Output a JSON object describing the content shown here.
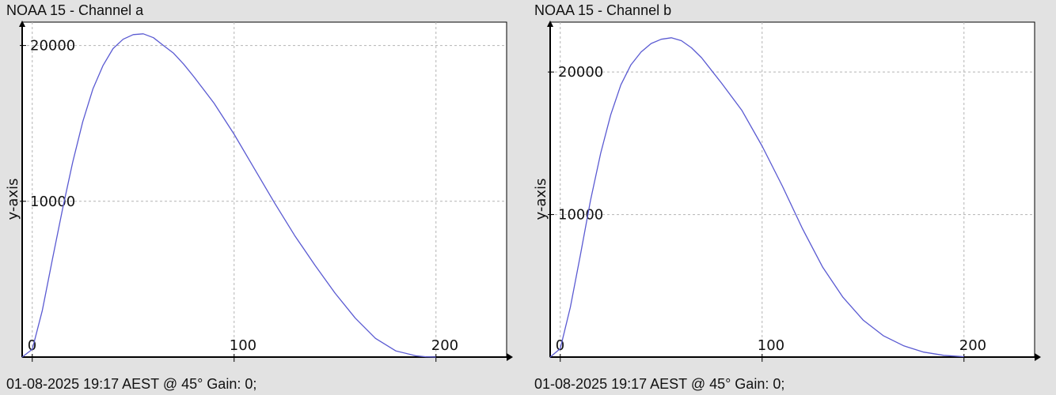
{
  "colors": {
    "line": "#5a5ad2",
    "grid": "#b4b4b4",
    "axis": "#000000",
    "plot_bg": "#ffffff",
    "window_bg": "#e2e2e2"
  },
  "panels": [
    {
      "title": "NOAA 15 - Channel a",
      "footer": "01-08-2025 19:17 AEST @ 45° Gain: 0;"
    },
    {
      "title": "NOAA 15 - Channel b",
      "footer": "01-08-2025 19:17 AEST @ 45° Gain: 0;"
    }
  ],
  "chart_data": [
    {
      "type": "line",
      "title": "NOAA 15 - Channel a",
      "xlabel": "",
      "ylabel": "y-axis",
      "xlim": [
        -5,
        235
      ],
      "ylim": [
        0,
        21500
      ],
      "xticks": [
        0,
        100,
        200
      ],
      "xtick_labels": [
        "0",
        "100",
        "200"
      ],
      "yticks": [
        10000,
        20000
      ],
      "ytick_labels": [
        "10000",
        "20000"
      ],
      "grid": true,
      "series": [
        {
          "x": [
            -5,
            0,
            5,
            10,
            15,
            20,
            25,
            30,
            35,
            40,
            45,
            50,
            55,
            60,
            65,
            70,
            75,
            80,
            90,
            100,
            110,
            120,
            130,
            140,
            150,
            160,
            170,
            180,
            190,
            195,
            200
          ],
          "y": [
            0,
            500,
            3000,
            6300,
            9500,
            12500,
            15100,
            17200,
            18700,
            19800,
            20400,
            20700,
            20750,
            20500,
            20000,
            19500,
            18800,
            18000,
            16300,
            14300,
            12100,
            9900,
            7800,
            5900,
            4100,
            2500,
            1200,
            400,
            80,
            20,
            0
          ]
        }
      ]
    },
    {
      "type": "line",
      "title": "NOAA 15 - Channel b",
      "xlabel": "",
      "ylabel": "y-axis",
      "xlim": [
        -5,
        235
      ],
      "ylim": [
        0,
        23500
      ],
      "xticks": [
        0,
        100,
        200
      ],
      "xtick_labels": [
        "0",
        "100",
        "200"
      ],
      "yticks": [
        10000,
        20000
      ],
      "ytick_labels": [
        "10000",
        "20000"
      ],
      "grid": true,
      "series": [
        {
          "x": [
            -5,
            0,
            5,
            10,
            15,
            20,
            25,
            30,
            35,
            40,
            45,
            50,
            55,
            60,
            65,
            70,
            75,
            80,
            90,
            100,
            110,
            120,
            130,
            140,
            150,
            160,
            170,
            180,
            190,
            200
          ],
          "y": [
            0,
            600,
            3500,
            7200,
            11000,
            14300,
            17000,
            19100,
            20500,
            21400,
            22000,
            22300,
            22400,
            22200,
            21700,
            21000,
            20100,
            19200,
            17300,
            14800,
            12000,
            9000,
            6300,
            4200,
            2600,
            1500,
            800,
            350,
            120,
            30
          ]
        }
      ]
    }
  ]
}
